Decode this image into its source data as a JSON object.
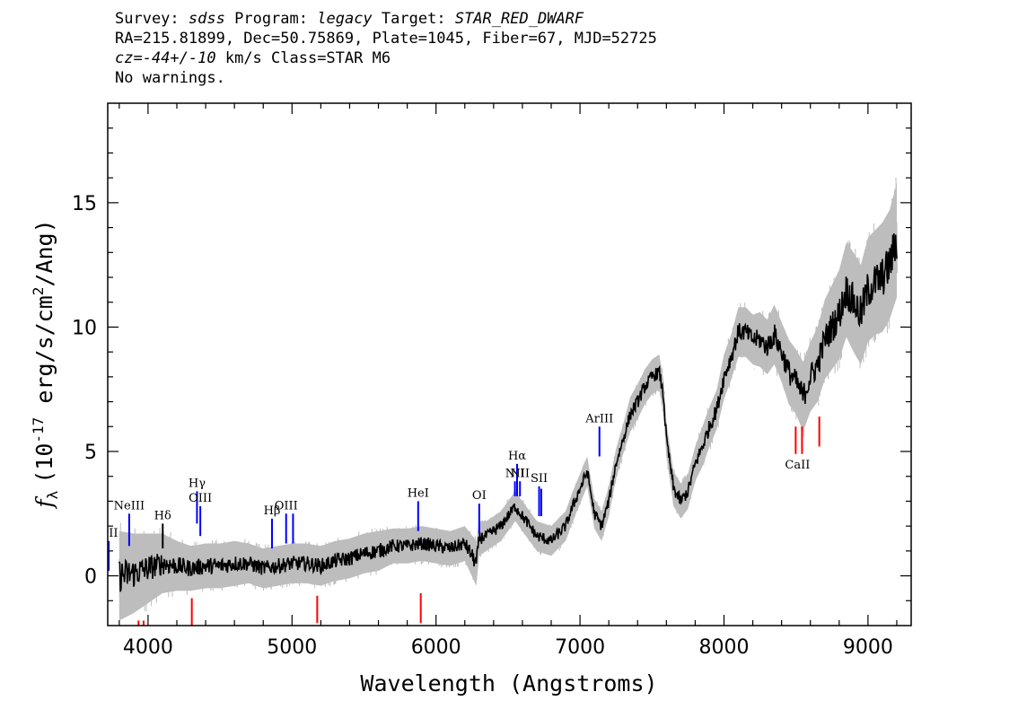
{
  "header": {
    "line1": {
      "survey_label": "Survey:",
      "survey": "sdss",
      "program_label": "Program:",
      "program": "legacy",
      "target_label": "Target:",
      "target": "STAR_RED_DWARF"
    },
    "line2": "RA=215.81899, Dec=50.75869, Plate=1045, Fiber=67, MJD=52725",
    "line3": {
      "cz_label": "cz=",
      "cz_value": "-44+/-10",
      "rest": " km/s Class=STAR M6"
    },
    "line4": "No warnings."
  },
  "chart_data": {
    "type": "line",
    "xlabel": "Wavelength (Angstroms)",
    "ylabel": "(10",
    "ylabel_symbol": "f",
    "ylabel_sub": "λ",
    "ylabel_exp": "-17",
    "ylabel_mid": " erg/s/cm",
    "ylabel_exp2": "2",
    "ylabel_end": "/Ang)",
    "xlim": [
      3720,
      9300
    ],
    "ylim": [
      -2,
      19
    ],
    "xticks": [
      4000,
      5000,
      6000,
      7000,
      8000,
      9000
    ],
    "yticks": [
      0,
      5,
      10,
      15
    ],
    "colors": {
      "spectrum": "#000000",
      "error_band": "#bdbdbd",
      "emission": "#0000ff",
      "absorption": "#ff0000",
      "label_tick": "#000000"
    },
    "spectrum": {
      "x": [
        3800,
        3900,
        4000,
        4100,
        4200,
        4300,
        4400,
        4500,
        4600,
        4700,
        4800,
        4900,
        5000,
        5100,
        5200,
        5300,
        5400,
        5500,
        5600,
        5700,
        5800,
        5900,
        6000,
        6100,
        6200,
        6280,
        6300,
        6350,
        6400,
        6450,
        6500,
        6550,
        6600,
        6650,
        6700,
        6750,
        6800,
        6850,
        6900,
        6950,
        7000,
        7050,
        7100,
        7150,
        7200,
        7250,
        7300,
        7350,
        7400,
        7450,
        7500,
        7550,
        7580,
        7600,
        7650,
        7700,
        7750,
        7800,
        7850,
        7900,
        7950,
        8000,
        8050,
        8100,
        8150,
        8200,
        8250,
        8300,
        8350,
        8400,
        8450,
        8500,
        8550,
        8600,
        8650,
        8700,
        8750,
        8800,
        8850,
        8900,
        8950,
        9000,
        9050,
        9100,
        9150,
        9200
      ],
      "y": [
        0.0,
        0.1,
        0.3,
        0.5,
        0.4,
        0.3,
        0.4,
        0.4,
        0.5,
        0.5,
        0.3,
        0.4,
        0.5,
        0.5,
        0.4,
        0.6,
        0.7,
        0.9,
        1.0,
        1.2,
        1.2,
        1.3,
        1.2,
        1.1,
        1.3,
        0.5,
        1.5,
        1.6,
        1.8,
        2.0,
        2.4,
        2.8,
        2.4,
        2.0,
        1.6,
        1.5,
        1.4,
        1.7,
        2.0,
        2.8,
        3.5,
        4.2,
        2.5,
        2.0,
        3.0,
        4.5,
        5.5,
        6.5,
        7.0,
        7.6,
        8.0,
        8.2,
        7.2,
        5.5,
        3.5,
        3.0,
        3.4,
        4.5,
        5.2,
        6.0,
        6.7,
        8.0,
        8.8,
        9.8,
        9.8,
        9.5,
        9.5,
        9.2,
        9.7,
        9.0,
        8.2,
        7.8,
        7.2,
        8.0,
        8.5,
        9.5,
        10.0,
        10.5,
        11.5,
        11.0,
        10.5,
        11.5,
        11.8,
        12.0,
        12.5,
        13.5
      ],
      "error": [
        1.8,
        1.6,
        1.4,
        1.2,
        1.0,
        0.9,
        0.9,
        0.9,
        0.9,
        0.8,
        0.8,
        0.8,
        0.8,
        0.8,
        0.8,
        0.8,
        0.8,
        0.8,
        0.8,
        0.7,
        0.7,
        0.7,
        0.7,
        0.7,
        0.7,
        0.9,
        0.7,
        0.6,
        0.6,
        0.6,
        0.6,
        0.6,
        0.6,
        0.6,
        0.6,
        0.6,
        0.6,
        0.6,
        0.6,
        0.6,
        0.6,
        0.6,
        0.6,
        0.6,
        0.6,
        0.6,
        0.6,
        0.7,
        0.7,
        0.7,
        0.7,
        0.7,
        0.7,
        0.7,
        0.7,
        0.7,
        0.7,
        0.7,
        0.8,
        0.8,
        0.8,
        0.9,
        0.9,
        1.0,
        1.0,
        1.0,
        1.1,
        1.1,
        1.2,
        1.2,
        1.3,
        1.3,
        1.4,
        1.4,
        1.5,
        1.6,
        1.7,
        1.8,
        1.9,
        2.0,
        2.0,
        2.1,
        2.1,
        2.2,
        2.2,
        2.3
      ]
    },
    "emission_lines": [
      {
        "label": "OII",
        "wave": 3727,
        "y0": 0.2,
        "y1": 1.4
      },
      {
        "label": "NeIII",
        "wave": 3869,
        "y0": 1.2,
        "y1": 2.5
      },
      {
        "label": "Hδ",
        "wave": 4102,
        "y0": 1.1,
        "y1": 2.1,
        "tick_color": "black"
      },
      {
        "label": "Hγ",
        "wave": 4340,
        "y0": 2.1,
        "y1": 3.4
      },
      {
        "label": "OIII",
        "wave": 4363,
        "y0": 1.6,
        "y1": 2.8
      },
      {
        "label": "Hβ",
        "wave": 4861,
        "y0": 1.1,
        "y1": 2.3
      },
      {
        "label": "OIII",
        "wave": 4959,
        "y0": 1.3,
        "y1": 2.5
      },
      {
        "label": "",
        "wave": 5007,
        "y0": 1.3,
        "y1": 2.5
      },
      {
        "label": "HeI",
        "wave": 5876,
        "y0": 1.8,
        "y1": 3.0
      },
      {
        "label": "OI",
        "wave": 6300,
        "y0": 1.7,
        "y1": 2.9
      },
      {
        "label": "NII",
        "wave": 6548,
        "y0": 3.2,
        "y1": 3.8
      },
      {
        "label": "Hα",
        "wave": 6563,
        "y0": 3.2,
        "y1": 4.5
      },
      {
        "label": "NII",
        "wave": 6583,
        "y0": 3.2,
        "y1": 3.8
      },
      {
        "label": "SII",
        "wave": 6716,
        "y0": 2.4,
        "y1": 3.6
      },
      {
        "label": "",
        "wave": 6731,
        "y0": 2.4,
        "y1": 3.5
      },
      {
        "label": "ArIII",
        "wave": 7135,
        "y0": 4.8,
        "y1": 6.0
      }
    ],
    "absorption_lines": [
      {
        "label": "",
        "wave": 3934,
        "y0": -1.8,
        "y1": -2.0
      },
      {
        "label": "",
        "wave": 3969,
        "y0": -1.8,
        "y1": -2.0
      },
      {
        "label": "",
        "wave": 4304,
        "y0": -0.9,
        "y1": -2.0
      },
      {
        "label": "",
        "wave": 5175,
        "y0": -0.8,
        "y1": -1.9
      },
      {
        "label": "",
        "wave": 5894,
        "y0": -0.7,
        "y1": -1.9
      },
      {
        "label": "CaII",
        "wave": 8498,
        "y0": 4.9,
        "y1": 6.0
      },
      {
        "label": "",
        "wave": 8542,
        "y0": 4.9,
        "y1": 6.0
      },
      {
        "label": "",
        "wave": 8662,
        "y0": 5.2,
        "y1": 6.4
      }
    ]
  }
}
